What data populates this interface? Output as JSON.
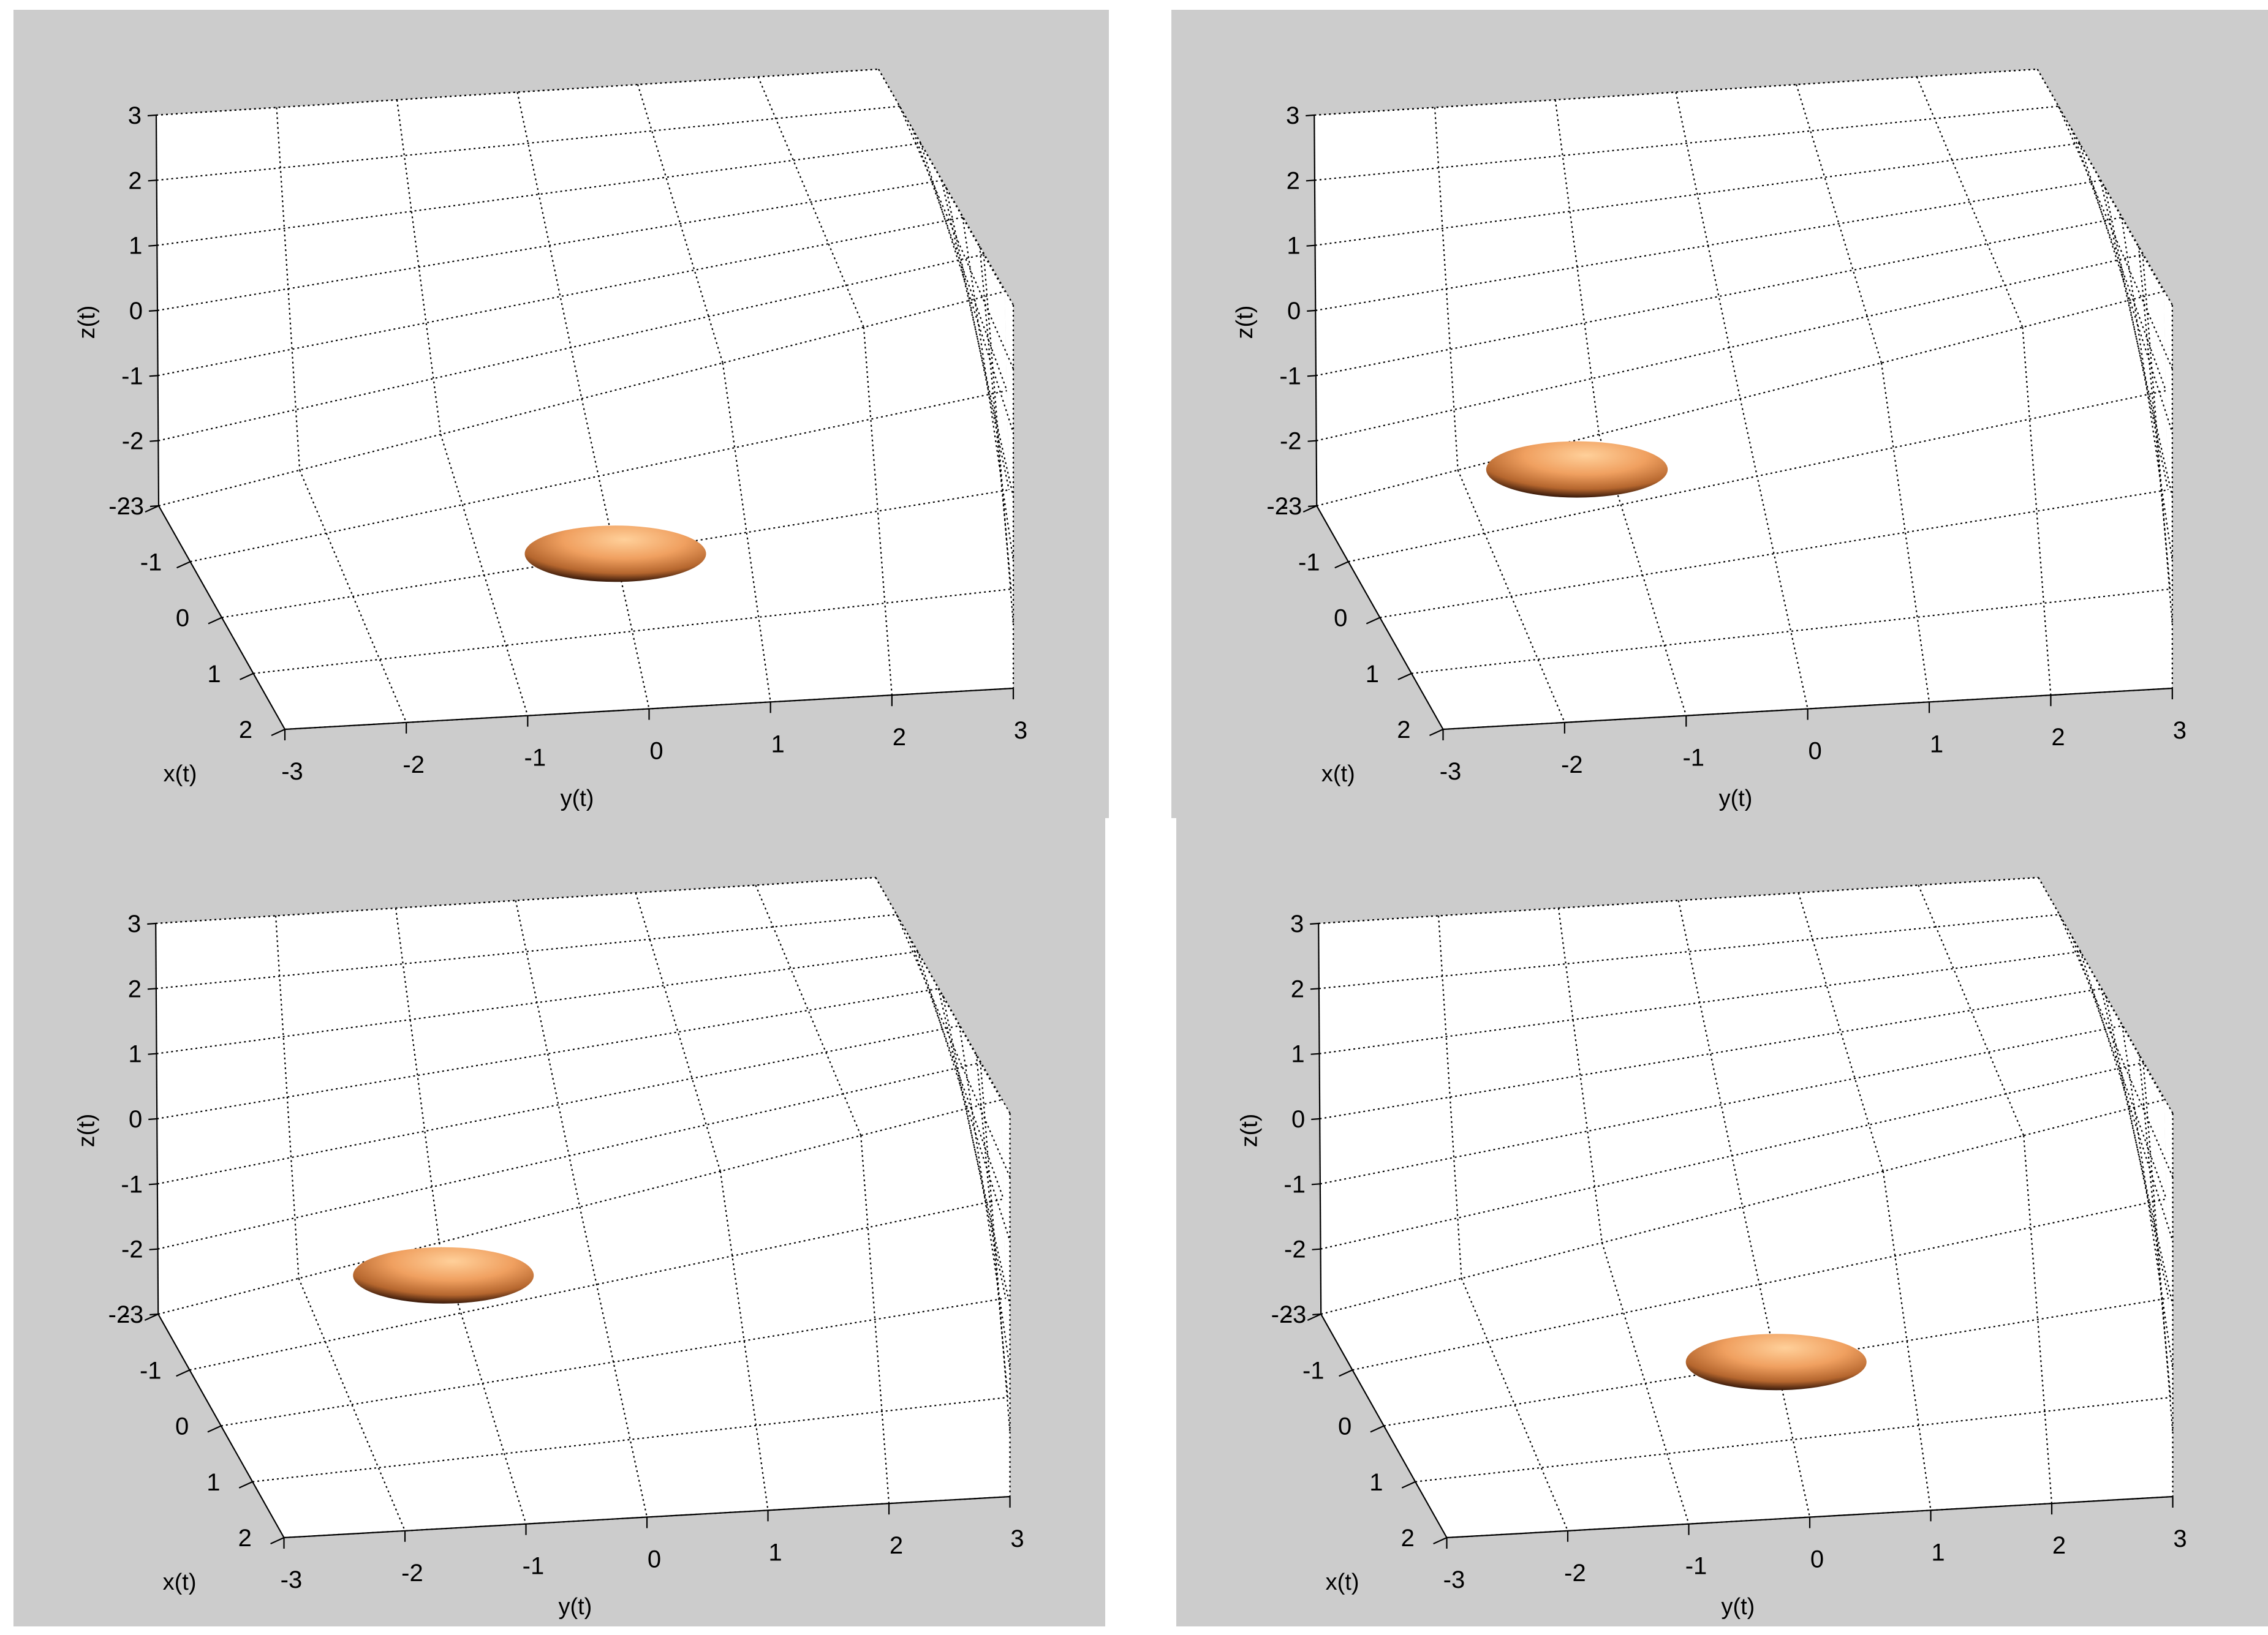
{
  "chart_data": [
    {
      "type": "scatter",
      "xlabel": "x(t)",
      "ylabel": "y(t)",
      "zlabel": "z(t)",
      "xlim": [
        -2,
        2
      ],
      "ylim": [
        -3,
        3
      ],
      "zlim": [
        -3,
        3
      ],
      "x_ticks": [
        "-2",
        "-1",
        "0",
        "1",
        "2"
      ],
      "y_ticks": [
        "-3",
        "-2",
        "-1",
        "0",
        "1",
        "2",
        "3"
      ],
      "z_ticks": [
        "3",
        "2",
        "1",
        "0",
        "-1",
        "-2",
        "-3"
      ],
      "grid": true,
      "background": "#cccccc",
      "ellipsoid_color": "#f0a060",
      "points": [
        {
          "x": 0,
          "y": 0,
          "z": -3
        }
      ]
    },
    {
      "type": "scatter",
      "xlabel": "x(t)",
      "ylabel": "y(t)",
      "zlabel": "z(t)",
      "xlim": [
        -2,
        2
      ],
      "ylim": [
        -3,
        3
      ],
      "zlim": [
        -3,
        3
      ],
      "x_ticks": [
        "-2",
        "-1",
        "0",
        "1",
        "2"
      ],
      "y_ticks": [
        "-3",
        "-2",
        "-1",
        "0",
        "1",
        "2",
        "3"
      ],
      "z_ticks": [
        "3",
        "2",
        "1",
        "0",
        "-1",
        "-2",
        "-3"
      ],
      "grid": true,
      "background": "#cccccc",
      "ellipsoid_color": "#f0a060",
      "points": [
        {
          "x": 0,
          "y": -1.5,
          "z": -1
        }
      ]
    },
    {
      "type": "scatter",
      "xlabel": "x(t)",
      "ylabel": "y(t)",
      "zlabel": "z(t)",
      "xlim": [
        -2,
        2
      ],
      "ylim": [
        -3,
        3
      ],
      "zlim": [
        -3,
        3
      ],
      "x_ticks": [
        "-2",
        "-1",
        "0",
        "1",
        "2"
      ],
      "y_ticks": [
        "-3",
        "-2",
        "-1",
        "0",
        "1",
        "2",
        "3"
      ],
      "z_ticks": [
        "3",
        "2",
        "1",
        "0",
        "-1",
        "-2",
        "-3"
      ],
      "grid": true,
      "background": "#cccccc",
      "ellipsoid_color": "#f0a060",
      "points": [
        {
          "x": 0,
          "y": -1.3,
          "z": -1
        }
      ]
    },
    {
      "type": "scatter",
      "xlabel": "x(t)",
      "ylabel": "y(t)",
      "zlabel": "z(t)",
      "xlim": [
        -2,
        2
      ],
      "ylim": [
        -3,
        3
      ],
      "zlim": [
        -3,
        3
      ],
      "x_ticks": [
        "-2",
        "-1",
        "0",
        "1",
        "2"
      ],
      "y_ticks": [
        "-3",
        "-2",
        "-1",
        "0",
        "1",
        "2",
        "3"
      ],
      "z_ticks": [
        "3",
        "2",
        "1",
        "0",
        "-1",
        "-2",
        "-3"
      ],
      "grid": true,
      "background": "#cccccc",
      "ellipsoid_color": "#f0a060",
      "points": [
        {
          "x": 0,
          "y": 0,
          "z": -3
        }
      ]
    }
  ]
}
